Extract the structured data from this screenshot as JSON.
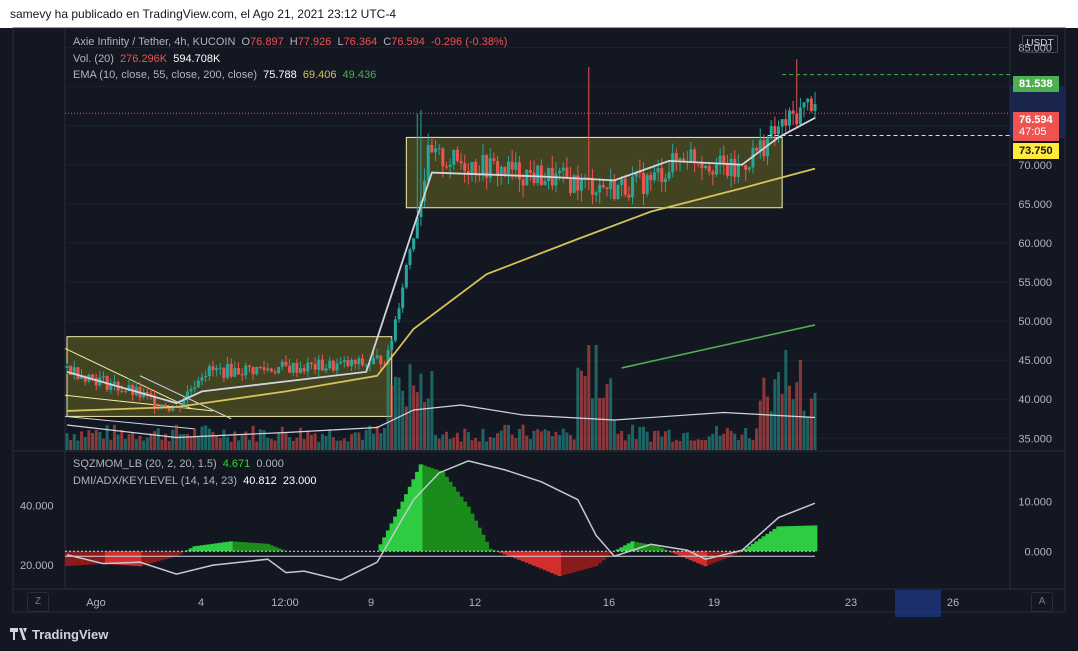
{
  "header": {
    "publisher_text": "samevy ha publicado en TradingView.com, el Ago 21, 2021 23:12 UTC-4"
  },
  "footer": {
    "brand": "TradingView"
  },
  "symbol": {
    "name": "Axie Infinity / Tether, 4h, KUCOIN",
    "open_label": "O",
    "open": "76.897",
    "high_label": "H",
    "high": "77.926",
    "low_label": "L",
    "low": "76.364",
    "close_label": "C",
    "close": "76.594",
    "change": "-0.296 (-0.38%)"
  },
  "volume": {
    "label": "Vol. (20)",
    "value": "276.296K",
    "ma": "594.708K"
  },
  "ema": {
    "label": "EMA (10, close, 55, close, 200, close)",
    "v10": "75.788",
    "v55": "69.406",
    "v200": "49.436"
  },
  "sqz": {
    "label": "SQZMOM_LB (20, 2, 20, 1.5)",
    "value": "4.671",
    "zero": "0.000"
  },
  "dmi": {
    "label": "DMI/ADX/KEYLEVEL (14, 14, 23)",
    "adx": "40.812",
    "key": "23.000"
  },
  "currency_button": "USDT",
  "price_tags": {
    "high_marker": "81.538",
    "last": "76.594",
    "countdown": "47:05",
    "level": "73.750"
  },
  "colors": {
    "bg": "#131722",
    "up": "#26a69a",
    "down": "#ef5350",
    "ema10": "#d1d4dc",
    "ema55": "#d6c35a",
    "ema200": "#4caf50",
    "zone_fill": "#535321",
    "zone_border": "#f5f0a8",
    "sqz_up": "#26c026",
    "sqz_down": "#b71c1c",
    "level_yellow": "#ffeb3b"
  },
  "buttons": {
    "left": "Z",
    "right": "A"
  },
  "chart_data": {
    "type": "candlestick",
    "title": "Axie Infinity / Tether, 4h, KUCOIN",
    "y_ticks": [
      "85.000",
      "80.000",
      "75.000",
      "70.000",
      "65.000",
      "60.000",
      "55.000",
      "50.000",
      "45.000",
      "40.000",
      "35.000"
    ],
    "ylim": [
      33.5,
      87.5
    ],
    "x_ticks": [
      "Ago",
      "4",
      "12:00",
      "9",
      "12",
      "16",
      "19",
      "23",
      "26"
    ],
    "last_price": 76.594,
    "high_marker": 81.538,
    "level": 73.75,
    "price_series": [
      {
        "start": 0,
        "end": 30,
        "from": 44.0,
        "to": 38.8
      },
      {
        "start": 30,
        "end": 37,
        "from": 38.8,
        "to": 43.5
      },
      {
        "start": 37,
        "end": 82,
        "from": 43.5,
        "to": 44.5
      },
      {
        "start": 82,
        "end": 88,
        "from": 44.5,
        "to": 45.5
      },
      {
        "start": 88,
        "end": 99,
        "from": 45.5,
        "to": 71.0
      },
      {
        "start": 99,
        "end": 130,
        "from": 71.0,
        "to": 68.5
      },
      {
        "start": 130,
        "end": 150,
        "from": 68.5,
        "to": 67.0
      },
      {
        "start": 150,
        "end": 160,
        "from": 67.0,
        "to": 68.0
      },
      {
        "start": 160,
        "end": 170,
        "from": 68.0,
        "to": 71.5
      },
      {
        "start": 170,
        "end": 183,
        "from": 71.5,
        "to": 69.0
      },
      {
        "start": 183,
        "end": 195,
        "from": 69.0,
        "to": 74.5
      },
      {
        "start": 195,
        "end": 205,
        "from": 74.5,
        "to": 78.5
      }
    ],
    "ema10": [
      [
        0,
        43.5
      ],
      [
        30,
        39.5
      ],
      [
        37,
        41.0
      ],
      [
        82,
        43.5
      ],
      [
        95,
        62.0
      ],
      [
        100,
        69.0
      ],
      [
        130,
        68.5
      ],
      [
        150,
        68.0
      ],
      [
        165,
        70.5
      ],
      [
        185,
        70.0
      ],
      [
        195,
        73.5
      ],
      [
        205,
        76.0
      ]
    ],
    "ema55": [
      [
        0,
        38.5
      ],
      [
        30,
        39.0
      ],
      [
        60,
        41.0
      ],
      [
        85,
        43.0
      ],
      [
        95,
        49.0
      ],
      [
        115,
        56.0
      ],
      [
        140,
        60.5
      ],
      [
        160,
        64.0
      ],
      [
        185,
        67.0
      ],
      [
        205,
        69.5
      ]
    ],
    "ema200_segment": [
      [
        152,
        44.0
      ],
      [
        205,
        49.5
      ]
    ],
    "zones": [
      {
        "from": 0,
        "to": 89,
        "low": 37.8,
        "high": 48.0
      },
      {
        "from": 93,
        "to": 196,
        "low": 64.5,
        "high": 73.5
      }
    ],
    "volume_ma_shape": [
      [
        0,
        0.5
      ],
      [
        30,
        0.25
      ],
      [
        60,
        0.35
      ],
      [
        85,
        0.45
      ],
      [
        95,
        0.8
      ],
      [
        108,
        0.9
      ],
      [
        125,
        0.7
      ],
      [
        150,
        0.6
      ],
      [
        180,
        0.75
      ],
      [
        205,
        0.65
      ]
    ],
    "sqzmom_ylim": [
      -7,
      20
    ],
    "sqzmom": [
      [
        0,
        -3
      ],
      [
        10,
        -2.5
      ],
      [
        20,
        -3
      ],
      [
        30,
        -1
      ],
      [
        35,
        1
      ],
      [
        45,
        2
      ],
      [
        55,
        1.5
      ],
      [
        60,
        0
      ],
      [
        75,
        0
      ],
      [
        85,
        0
      ],
      [
        90,
        7
      ],
      [
        97,
        17.5
      ],
      [
        103,
        16
      ],
      [
        110,
        9
      ],
      [
        116,
        0.5
      ],
      [
        125,
        -2
      ],
      [
        135,
        -5
      ],
      [
        145,
        -3
      ],
      [
        150,
        0
      ],
      [
        155,
        2
      ],
      [
        162,
        1
      ],
      [
        165,
        0
      ],
      [
        175,
        -3
      ],
      [
        182,
        -1
      ],
      [
        185,
        0
      ],
      [
        195,
        5
      ],
      [
        205,
        5.2
      ]
    ],
    "adx_ylim": [
      13,
      58
    ],
    "adx_ticks": [
      "40.000",
      "20.000"
    ],
    "sqz_ticks": [
      "10.000",
      "0.000"
    ],
    "adx": [
      [
        0,
        23.5
      ],
      [
        10,
        20.5
      ],
      [
        20,
        21
      ],
      [
        30,
        17
      ],
      [
        40,
        20
      ],
      [
        55,
        22
      ],
      [
        60,
        17.5
      ],
      [
        65,
        18
      ],
      [
        75,
        15
      ],
      [
        85,
        21
      ],
      [
        95,
        42
      ],
      [
        102,
        51
      ],
      [
        110,
        55
      ],
      [
        120,
        52
      ],
      [
        130,
        48
      ],
      [
        140,
        42
      ],
      [
        145,
        30
      ],
      [
        150,
        23
      ],
      [
        160,
        27
      ],
      [
        170,
        25
      ],
      [
        175,
        22
      ],
      [
        185,
        25
      ],
      [
        195,
        36
      ],
      [
        205,
        40.8
      ]
    ]
  }
}
